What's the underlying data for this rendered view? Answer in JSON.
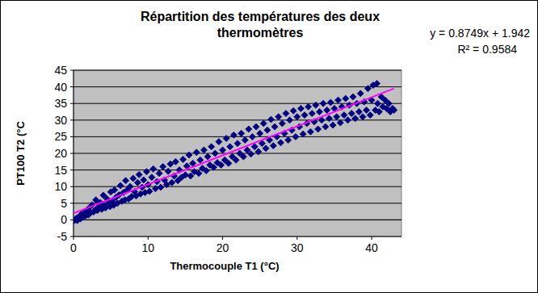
{
  "chart_data": {
    "type": "scatter",
    "title": "Répartition des températures des deux thermomètres",
    "x_label": "Thermocouple T1 (°C)",
    "y_label": "PT100 T2 (°C",
    "annotations": [
      "y = 0.8749x + 1.942",
      "R² = 0.9584"
    ],
    "xlim": [
      0,
      44
    ],
    "xticks": [
      0,
      10,
      20,
      30,
      40
    ],
    "ylim": [
      -5,
      45
    ],
    "yticks": [
      -5,
      0,
      5,
      10,
      15,
      20,
      25,
      30,
      35,
      40,
      45
    ],
    "grid": true,
    "series": [
      {
        "type": "scatter",
        "color": "#000080",
        "marker": "diamond",
        "x": [
          0,
          0.2,
          0.4,
          0.5,
          0.7,
          0.9,
          1.0,
          1.1,
          1.3,
          1.5,
          1.6,
          1.8,
          2.0,
          2.0,
          2.3,
          2.5,
          2.7,
          2.9,
          3.0,
          3.2,
          3.4,
          3.6,
          3.8,
          4.0,
          4.1,
          4.3,
          4.5,
          4.7,
          4.9,
          5.0,
          5.2,
          5.4,
          5.5,
          5.7,
          5.9,
          6.1,
          6.3,
          6.5,
          6.7,
          6.9,
          7.0,
          7.2,
          7.4,
          7.6,
          7.8,
          8.0,
          8.2,
          8.4,
          8.6,
          8.8,
          9.0,
          9.2,
          9.4,
          9.6,
          9.8,
          10.0,
          10.2,
          10.5,
          10.7,
          11.0,
          11.2,
          11.5,
          11.7,
          12.0,
          12.2,
          12.5,
          12.7,
          13.0,
          13.2,
          13.5,
          13.7,
          14.0,
          14.2,
          14.5,
          14.7,
          15.0,
          15.2,
          15.5,
          15.7,
          16.0,
          16.2,
          16.5,
          16.8,
          17.0,
          17.3,
          17.5,
          17.8,
          18.0,
          18.3,
          18.5,
          18.8,
          19.0,
          19.3,
          19.5,
          19.8,
          20.0,
          20.3,
          20.5,
          20.8,
          21.0,
          21.3,
          21.5,
          21.8,
          22.0,
          22.3,
          22.5,
          22.8,
          23.0,
          23.3,
          23.5,
          23.8,
          24.0,
          24.3,
          24.5,
          24.8,
          25.0,
          25.3,
          25.5,
          25.8,
          26.0,
          26.3,
          26.5,
          26.8,
          27.0,
          27.3,
          27.5,
          27.8,
          28.0,
          28.3,
          28.5,
          28.8,
          29.0,
          29.3,
          29.5,
          29.8,
          30.0,
          30.3,
          30.5,
          30.8,
          31.0,
          31.3,
          31.5,
          31.8,
          32.0,
          32.3,
          32.5,
          32.8,
          33.0,
          33.3,
          33.5,
          33.8,
          34.0,
          34.3,
          34.5,
          34.8,
          35.0,
          35.3,
          35.5,
          35.8,
          36.0,
          36.3,
          36.5,
          36.8,
          37.0,
          37.3,
          37.5,
          37.8,
          38.0,
          38.3,
          38.5,
          38.8,
          39.0,
          39.3,
          39.5,
          39.8,
          40.0,
          40.2,
          40.5,
          40.7,
          40.8,
          41.0,
          41.3,
          41.5,
          41.8,
          42.0,
          42.3,
          42.5,
          42.8,
          43.0
        ],
        "values": [
          -0.3,
          0,
          0.5,
          -0.2,
          0.8,
          0.3,
          1.6,
          0.6,
          1.0,
          2.5,
          1.2,
          1.7,
          3.4,
          1.5,
          2.2,
          4.5,
          2.4,
          3.0,
          6.0,
          2.8,
          4.0,
          5.2,
          3.2,
          7.4,
          4.5,
          3.6,
          6.3,
          5.0,
          4.0,
          8.4,
          5.6,
          4.4,
          9.0,
          6.8,
          5.0,
          7.5,
          10.3,
          5.6,
          8.2,
          6.0,
          11.8,
          9.0,
          6.3,
          10.0,
          7.0,
          12.5,
          8.5,
          7.2,
          11.2,
          13.6,
          7.8,
          9.8,
          12.0,
          8.2,
          14.5,
          10.6,
          8.6,
          12.8,
          15.3,
          9.4,
          11.5,
          14.0,
          9.8,
          16.0,
          12.0,
          10.6,
          14.6,
          16.8,
          11.2,
          13.2,
          17.5,
          11.8,
          15.0,
          12.8,
          18.2,
          13.5,
          16.2,
          19.5,
          13.2,
          17.0,
          14.5,
          20.3,
          14.0,
          18.0,
          15.5,
          21.0,
          14.8,
          19.0,
          16.5,
          22.0,
          15.8,
          20.0,
          17.2,
          23.5,
          16.5,
          21.0,
          18.0,
          24.5,
          17.0,
          22.0,
          19.0,
          25.5,
          18.0,
          23.0,
          20.0,
          26.0,
          19.0,
          24.0,
          21.0,
          27.3,
          19.8,
          25.0,
          22.0,
          28.0,
          20.5,
          26.0,
          23.0,
          29.0,
          21.5,
          27.0,
          24.0,
          30.2,
          22.3,
          28.0,
          25.0,
          31.0,
          23.2,
          29.0,
          26.0,
          32.0,
          24.0,
          30.0,
          27.0,
          32.8,
          25.0,
          31.0,
          28.0,
          33.5,
          25.8,
          31.5,
          29.0,
          34.0,
          26.5,
          32.0,
          29.5,
          34.5,
          27.3,
          32.5,
          30.0,
          35.0,
          28.0,
          33.0,
          30.5,
          35.3,
          28.5,
          33.5,
          31.0,
          36.0,
          29.2,
          34.0,
          31.5,
          36.5,
          30.0,
          34.5,
          32.0,
          37.0,
          30.5,
          35.0,
          32.5,
          38.0,
          31.0,
          35.5,
          33.0,
          39.5,
          31.5,
          36.0,
          40.5,
          33.0,
          41.0,
          35.0,
          32.5,
          37.0,
          34.0,
          36.0,
          33.5,
          35.0,
          32.5,
          33.5,
          33.0
        ]
      },
      {
        "type": "line",
        "color": "#ff00ff",
        "line_style": "solid",
        "x": [
          0,
          43
        ],
        "values": [
          1.94,
          39.5
        ]
      }
    ]
  }
}
